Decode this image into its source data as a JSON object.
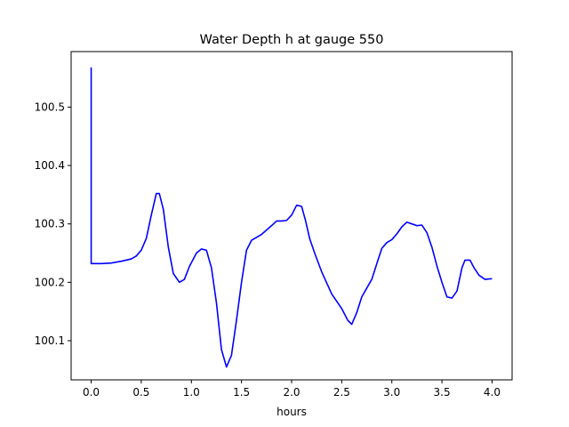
{
  "chart_data": {
    "type": "line",
    "title": "Water Depth h at gauge 550",
    "xlabel": "hours",
    "ylabel": "",
    "xlim": [
      -0.2,
      4.2
    ],
    "ylim": [
      100.033,
      100.595
    ],
    "xticks": [
      0.0,
      0.5,
      1.0,
      1.5,
      2.0,
      2.5,
      3.0,
      3.5,
      4.0
    ],
    "xtick_labels": [
      "0.0",
      "0.5",
      "1.0",
      "1.5",
      "2.0",
      "2.5",
      "3.0",
      "3.5",
      "4.0"
    ],
    "yticks": [
      100.1,
      100.2,
      100.3,
      100.4,
      100.5
    ],
    "ytick_labels": [
      "100.1",
      "100.2",
      "100.3",
      "100.4",
      "100.5"
    ],
    "grid": false,
    "legend": "none",
    "series": [
      {
        "color": "#0000ff",
        "x": [
          0.0,
          0.0,
          0.0,
          0.1,
          0.2,
          0.3,
          0.4,
          0.45,
          0.5,
          0.55,
          0.6,
          0.65,
          0.68,
          0.72,
          0.77,
          0.82,
          0.88,
          0.93,
          0.98,
          1.05,
          1.1,
          1.15,
          1.2,
          1.25,
          1.3,
          1.35,
          1.4,
          1.45,
          1.5,
          1.55,
          1.6,
          1.65,
          1.7,
          1.8,
          1.85,
          1.9,
          1.95,
          2.0,
          2.05,
          2.1,
          2.14,
          2.18,
          2.23,
          2.3,
          2.4,
          2.5,
          2.56,
          2.6,
          2.65,
          2.7,
          2.8,
          2.85,
          2.9,
          2.95,
          3.0,
          3.05,
          3.1,
          3.15,
          3.2,
          3.25,
          3.3,
          3.35,
          3.4,
          3.45,
          3.5,
          3.55,
          3.6,
          3.65,
          3.7,
          3.73,
          3.78,
          3.82,
          3.87,
          3.93,
          3.98,
          4.0
        ],
        "y": [
          100.568,
          100.232,
          100.232,
          100.232,
          100.233,
          100.236,
          100.24,
          100.245,
          100.255,
          100.275,
          100.315,
          100.352,
          100.352,
          100.325,
          100.26,
          100.215,
          100.2,
          100.205,
          100.227,
          100.25,
          100.257,
          100.255,
          100.225,
          100.165,
          100.085,
          100.055,
          100.075,
          100.135,
          100.2,
          100.255,
          100.272,
          100.277,
          100.282,
          100.297,
          100.305,
          100.305,
          100.306,
          100.315,
          100.332,
          100.33,
          100.305,
          100.275,
          100.25,
          100.218,
          100.18,
          100.155,
          100.135,
          100.128,
          100.148,
          100.175,
          100.205,
          100.232,
          100.258,
          100.268,
          100.273,
          100.283,
          100.295,
          100.303,
          100.3,
          100.297,
          100.298,
          100.285,
          100.26,
          100.228,
          100.2,
          100.175,
          100.173,
          100.185,
          100.225,
          100.238,
          100.238,
          100.225,
          100.212,
          100.205,
          100.206,
          100.206
        ]
      }
    ]
  }
}
